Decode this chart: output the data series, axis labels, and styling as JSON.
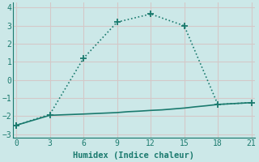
{
  "xlabel": "Humidex (Indice chaleur)",
  "bg_color": "#cce8e8",
  "grid_color": "#b8d8d8",
  "line_color": "#1a7a6e",
  "line1_x": [
    0,
    3,
    6,
    9,
    12,
    15,
    18,
    21
  ],
  "line1_y": [
    -2.5,
    -1.9,
    1.2,
    3.2,
    3.65,
    3.0,
    -1.35,
    -1.25
  ],
  "line1_marker_idx": [
    0,
    2,
    3,
    4,
    5
  ],
  "line2_x": [
    0,
    3,
    6,
    9,
    10,
    11,
    12,
    13,
    14,
    15,
    16,
    17,
    18,
    21
  ],
  "line2_y": [
    -2.5,
    -1.95,
    -1.88,
    -1.8,
    -1.75,
    -1.72,
    -1.68,
    -1.65,
    -1.6,
    -1.55,
    -1.48,
    -1.42,
    -1.35,
    -1.25
  ],
  "line2_marker_idx": [
    0,
    1,
    12,
    13
  ],
  "ylim": [
    -3.2,
    4.3
  ],
  "xlim": [
    -0.3,
    21.3
  ],
  "yticks": [
    -3,
    -2,
    -1,
    0,
    1,
    2,
    3,
    4
  ],
  "xticks": [
    0,
    3,
    6,
    9,
    12,
    15,
    18,
    21
  ]
}
